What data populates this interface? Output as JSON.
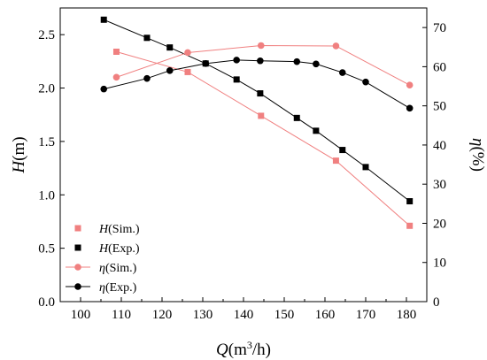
{
  "chart_data": {
    "type": "line",
    "xlabel": {
      "base": "Q",
      "unit_pre": "(m",
      "sup": "3",
      "unit_post": "/h)"
    },
    "ylabel_left": {
      "base": "H",
      "unit": "(m)"
    },
    "ylabel_right": {
      "base": "η",
      "unit": "(%)"
    },
    "xlim": [
      95,
      185
    ],
    "ylim_left": [
      0,
      2.75
    ],
    "ylim_right": [
      0,
      75
    ],
    "xticks": [
      100,
      110,
      120,
      130,
      140,
      150,
      160,
      170,
      180
    ],
    "yticks_left": [
      "0.0",
      "0.5",
      "1.0",
      "1.5",
      "2.0",
      "2.5"
    ],
    "yticks_right": [
      "0",
      "10",
      "20",
      "30",
      "40",
      "50",
      "60",
      "70"
    ],
    "legend_position": "bottom-left",
    "series": [
      {
        "name_base": "H",
        "name_suffix": "(Sim.)",
        "axis": "left",
        "marker": "square",
        "color": "#f08080",
        "points": [
          [
            108.8,
            2.34
          ],
          [
            126.3,
            2.15
          ],
          [
            144.3,
            1.74
          ],
          [
            162.7,
            1.32
          ],
          [
            180.8,
            0.71
          ]
        ]
      },
      {
        "name_base": "H",
        "name_suffix": "(Exp.)",
        "axis": "left",
        "marker": "square",
        "color": "#000000",
        "points": [
          [
            105.7,
            2.64
          ],
          [
            116.3,
            2.47
          ],
          [
            121.9,
            2.38
          ],
          [
            130.7,
            2.23
          ],
          [
            138.3,
            2.08
          ],
          [
            144.1,
            1.95
          ],
          [
            153.1,
            1.72
          ],
          [
            157.8,
            1.6
          ],
          [
            164.3,
            1.42
          ],
          [
            170.0,
            1.26
          ],
          [
            180.8,
            0.94
          ]
        ]
      },
      {
        "name_base": "η",
        "name_suffix": "(Sim.)",
        "axis": "right",
        "marker": "circle",
        "color": "#f08080",
        "points": [
          [
            108.8,
            57.3
          ],
          [
            126.3,
            63.6
          ],
          [
            144.3,
            65.4
          ],
          [
            162.7,
            65.3
          ],
          [
            180.8,
            55.3
          ]
        ]
      },
      {
        "name_base": "η",
        "name_suffix": "(Exp.)",
        "axis": "right",
        "marker": "circle",
        "color": "#000000",
        "points": [
          [
            105.7,
            54.3
          ],
          [
            116.3,
            57.0
          ],
          [
            121.9,
            59.0
          ],
          [
            130.7,
            60.8
          ],
          [
            138.3,
            61.7
          ],
          [
            144.1,
            61.5
          ],
          [
            153.1,
            61.3
          ],
          [
            157.8,
            60.7
          ],
          [
            164.3,
            58.5
          ],
          [
            170.0,
            56.1
          ],
          [
            180.8,
            49.4
          ]
        ]
      }
    ]
  }
}
